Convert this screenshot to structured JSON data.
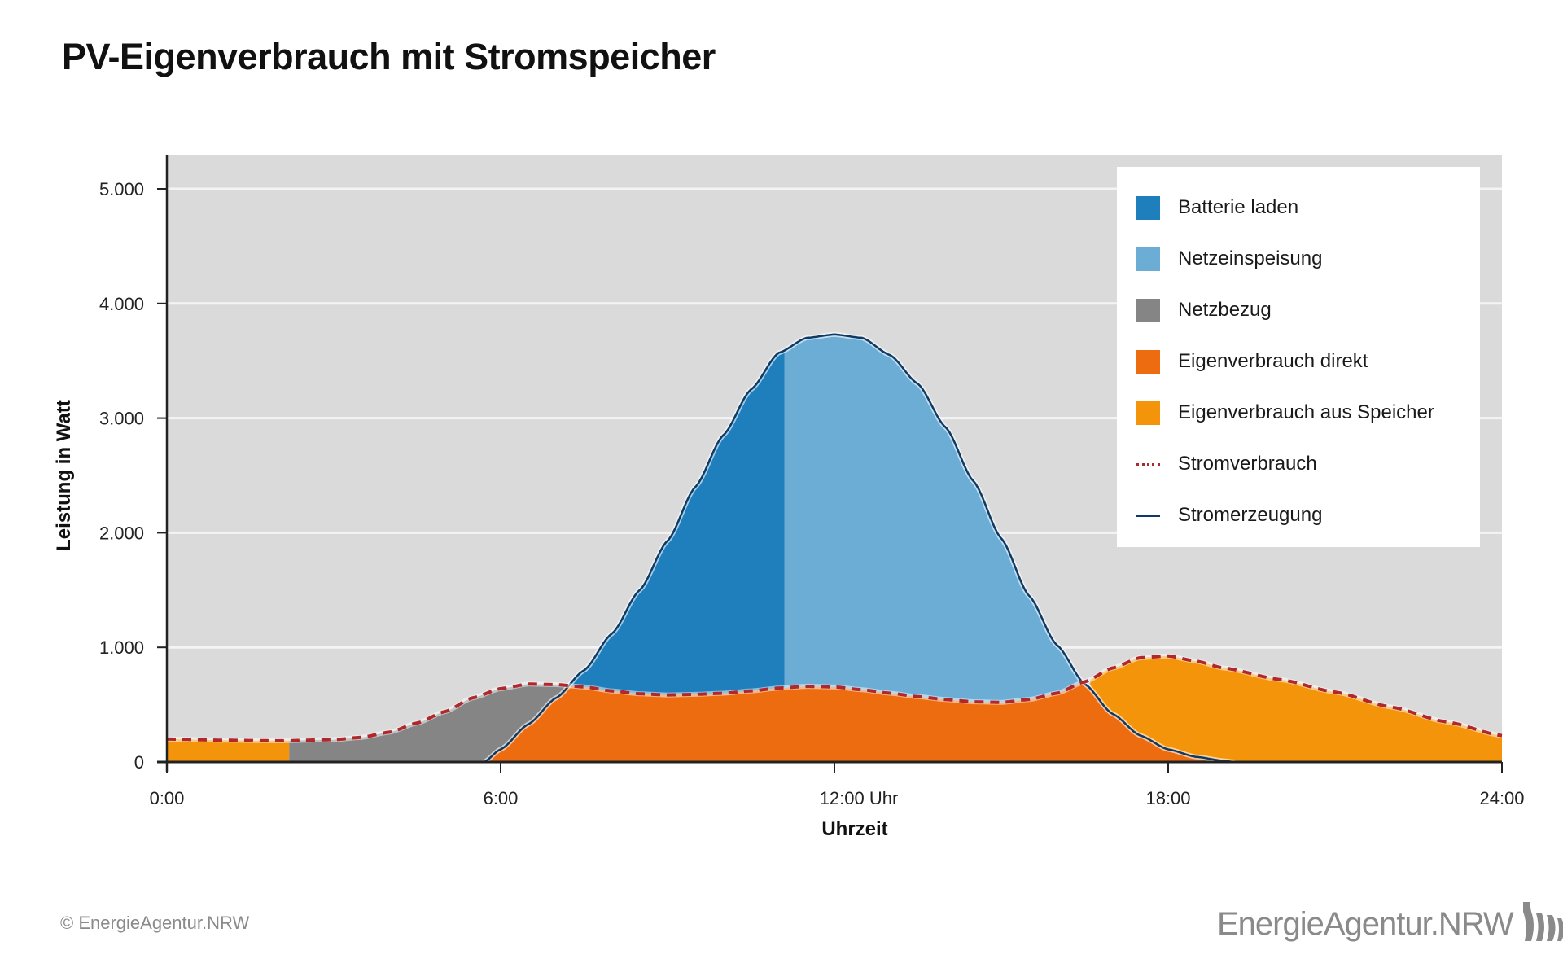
{
  "title": "PV-Eigenverbrauch mit Stromspeicher",
  "footer": {
    "copyright": "© EnergieAgentur.NRW",
    "logo_text": "EnergieAgentur.NRW",
    "logo_icon": "energieagentur-logo-icon"
  },
  "colors": {
    "plot_background": "#dadada",
    "gridline": "#f4f4f4",
    "batterie_laden": "#1f7fbd",
    "netzeinspeisung": "#6cadd6",
    "netzbezug": "#858585",
    "eigenverbrauch_direkt": "#ec6c0f",
    "eigenverbrauch_speicher": "#f4940a",
    "stromverbrauch": "#b0282c",
    "stromerzeugung": "#0f3a63"
  },
  "chart_data": {
    "type": "area",
    "title": "PV-Eigenverbrauch mit Stromspeicher",
    "xlabel": "Uhrzeit",
    "ylabel": "Leistung in Watt",
    "xlim": [
      0,
      24
    ],
    "ylim": [
      0,
      5300
    ],
    "x_ticks": [
      0,
      6,
      12,
      18,
      24
    ],
    "x_tick_labels": [
      "0:00",
      "6:00",
      "12:00 Uhr",
      "18:00",
      "24:00"
    ],
    "y_ticks": [
      0,
      1000,
      2000,
      3000,
      4000,
      5000
    ],
    "y_tick_labels": [
      "0",
      "1.000",
      "2.000",
      "3.000",
      "4.000",
      "5.000"
    ],
    "grid": true,
    "legend_position": "top-right",
    "legend": [
      {
        "label": "Batterie laden",
        "kind": "area"
      },
      {
        "label": "Netzeinspeisung",
        "kind": "area"
      },
      {
        "label": "Netzbezug",
        "kind": "area"
      },
      {
        "label": "Eigenverbrauch direkt",
        "kind": "area"
      },
      {
        "label": "Eigenverbrauch aus Speicher",
        "kind": "area"
      },
      {
        "label": "Stromverbrauch",
        "kind": "dashed-line"
      },
      {
        "label": "Stromerzeugung",
        "kind": "line"
      }
    ],
    "battery_charge_end_hour": 11.1,
    "storage_discharge_until_hour": 2.2,
    "storage_discharge_from_hour": 16.6,
    "series": [
      {
        "name": "Stromverbrauch",
        "unit": "W",
        "x": [
          0,
          1,
          2,
          3,
          3.5,
          4,
          4.5,
          5,
          5.5,
          6,
          6.5,
          7,
          7.5,
          8,
          8.5,
          9,
          9.5,
          10,
          10.5,
          11,
          11.5,
          12,
          12.5,
          13,
          13.5,
          14,
          14.5,
          15,
          15.5,
          16,
          16.5,
          17,
          17.5,
          18,
          18.5,
          19,
          20,
          21,
          22,
          23,
          24
        ],
        "y": [
          200,
          190,
          185,
          195,
          215,
          260,
          340,
          440,
          560,
          640,
          680,
          675,
          655,
          620,
          595,
          585,
          590,
          600,
          620,
          645,
          660,
          655,
          630,
          600,
          570,
          545,
          525,
          520,
          545,
          600,
          700,
          820,
          910,
          925,
          880,
          820,
          720,
          610,
          480,
          350,
          230
        ]
      },
      {
        "name": "Stromerzeugung",
        "unit": "W",
        "x": [
          5.7,
          6,
          6.5,
          7,
          7.5,
          8,
          8.5,
          9,
          9.5,
          10,
          10.5,
          11,
          11.5,
          12,
          12.5,
          13,
          13.5,
          14,
          14.5,
          15,
          15.5,
          16,
          16.5,
          17,
          17.5,
          18,
          18.5,
          19,
          19.2
        ],
        "y": [
          0,
          110,
          330,
          560,
          800,
          1120,
          1500,
          1930,
          2400,
          2850,
          3250,
          3570,
          3700,
          3730,
          3700,
          3550,
          3300,
          2920,
          2450,
          1950,
          1450,
          1020,
          680,
          420,
          230,
          110,
          45,
          10,
          0
        ]
      }
    ]
  }
}
